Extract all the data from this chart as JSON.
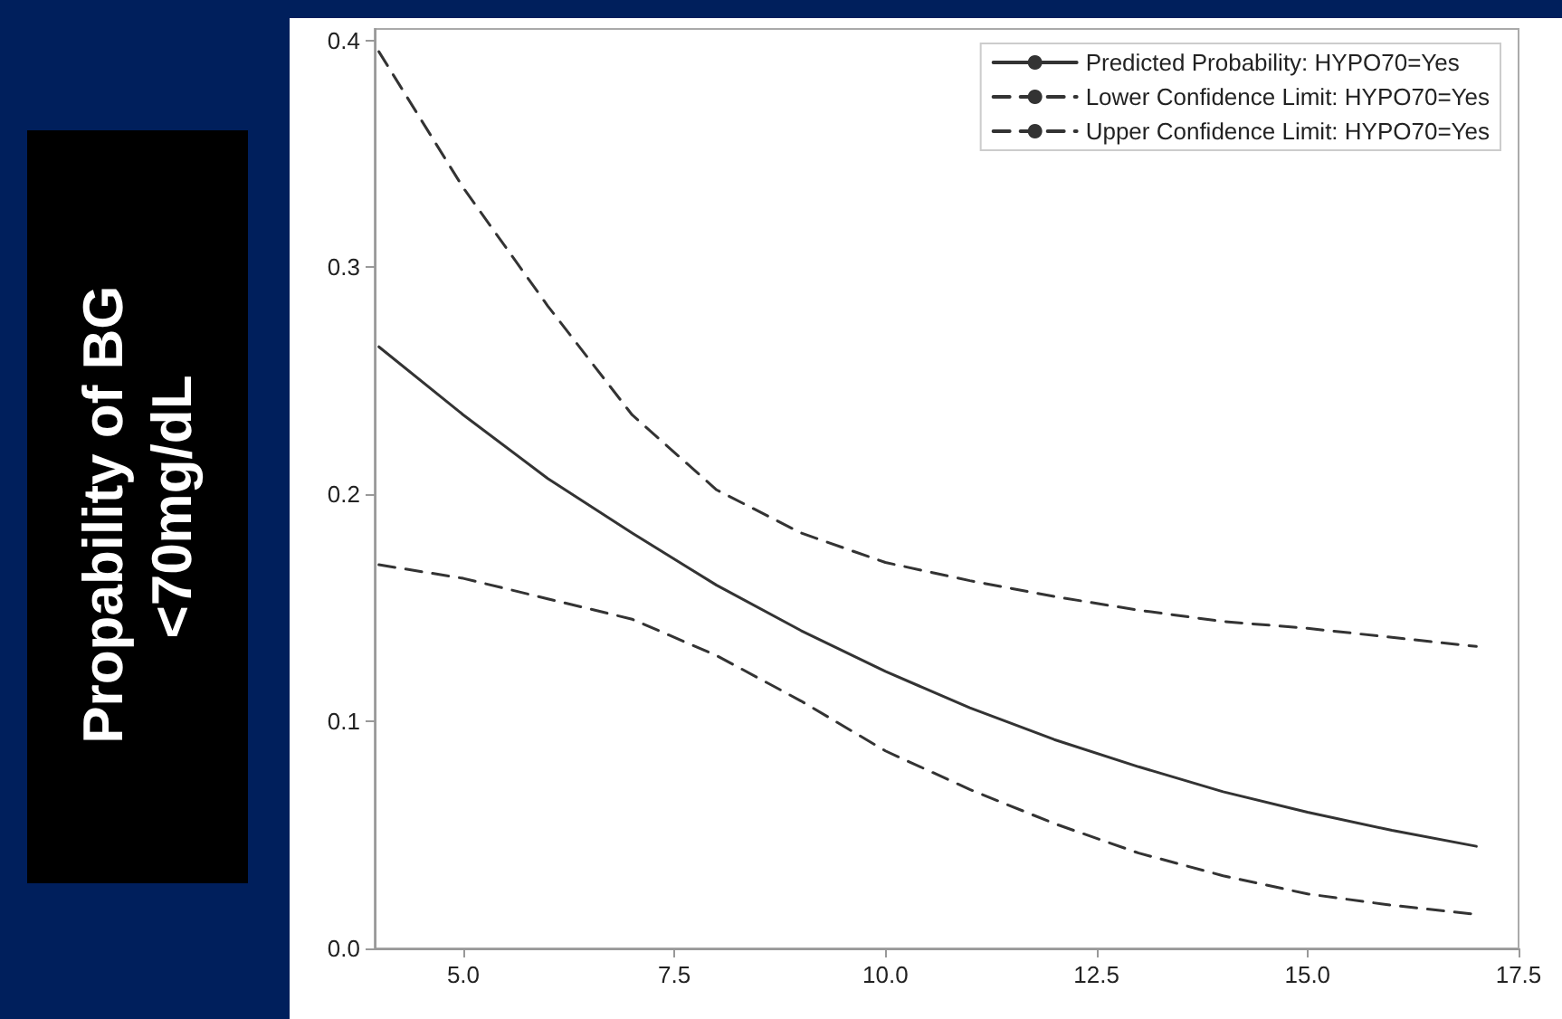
{
  "chart_data": {
    "type": "line",
    "ylabel": "Propability of BG <70mg/dL",
    "x": [
      4,
      5,
      6,
      7,
      8,
      9,
      10,
      11,
      12,
      13,
      14,
      15,
      16,
      17
    ],
    "series": [
      {
        "name": "Predicted Probability: HYPO70=Yes",
        "color": "#333333",
        "line_style": "solid",
        "values": [
          0.265,
          0.235,
          0.207,
          0.183,
          0.16,
          0.14,
          0.122,
          0.106,
          0.092,
          0.08,
          0.069,
          0.06,
          0.052,
          0.045
        ]
      },
      {
        "name": "Lower Confidence Limit: HYPO70=Yes",
        "color": "#333333",
        "line_style": "dashed",
        "values": [
          0.169,
          0.163,
          0.154,
          0.145,
          0.129,
          0.109,
          0.087,
          0.07,
          0.055,
          0.042,
          0.032,
          0.024,
          0.019,
          0.015
        ]
      },
      {
        "name": "Upper Confidence Limit: HYPO70=Yes",
        "color": "#333333",
        "line_style": "dashed",
        "values": [
          0.395,
          0.335,
          0.283,
          0.235,
          0.202,
          0.183,
          0.17,
          0.162,
          0.155,
          0.149,
          0.144,
          0.141,
          0.137,
          0.133
        ]
      }
    ],
    "xlim": [
      3.95,
      17.5
    ],
    "xticks": [
      {
        "value": 5,
        "label": "5.0"
      },
      {
        "value": 7.5,
        "label": "7.5"
      },
      {
        "value": 10,
        "label": "10.0"
      },
      {
        "value": 12.5,
        "label": "12.5"
      },
      {
        "value": 15,
        "label": "15.0"
      },
      {
        "value": 17.5,
        "label": "17.5"
      }
    ],
    "ylim": [
      0,
      0.405
    ],
    "yticks": [
      {
        "value": 0,
        "label": "0.0"
      },
      {
        "value": 0.1,
        "label": "0.1"
      },
      {
        "value": 0.2,
        "label": "0.2"
      },
      {
        "value": 0.3,
        "label": "0.3"
      },
      {
        "value": 0.4,
        "label": "0.4"
      }
    ],
    "legend": "top right",
    "grid": false,
    "marker": "none"
  }
}
